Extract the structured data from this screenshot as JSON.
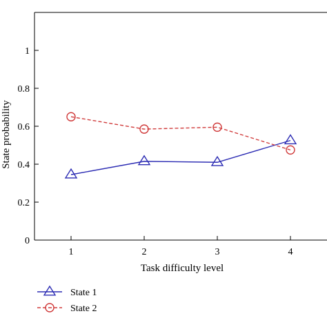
{
  "chart_data": {
    "type": "line",
    "x": [
      1,
      2,
      3,
      4
    ],
    "x_ticks": [
      "1",
      "2",
      "3",
      "4"
    ],
    "y_ticks": [
      "0",
      "0.2",
      "0.4",
      "0.6",
      "0.8",
      "1"
    ],
    "xlabel": "Task difficulty level",
    "ylabel": "State probability",
    "xlim": [
      0.5,
      4.5
    ],
    "ylim": [
      0,
      1.2
    ],
    "grid": false,
    "legend_position": "bottom-left",
    "series": [
      {
        "name": "State 1",
        "values": [
          0.345,
          0.415,
          0.41,
          0.525
        ],
        "color": "#2b2bb3",
        "line_style": "solid",
        "marker": "triangle"
      },
      {
        "name": "State 2",
        "values": [
          0.65,
          0.585,
          0.595,
          0.475
        ],
        "color": "#d03a3a",
        "line_style": "dashed",
        "marker": "circle"
      }
    ]
  }
}
